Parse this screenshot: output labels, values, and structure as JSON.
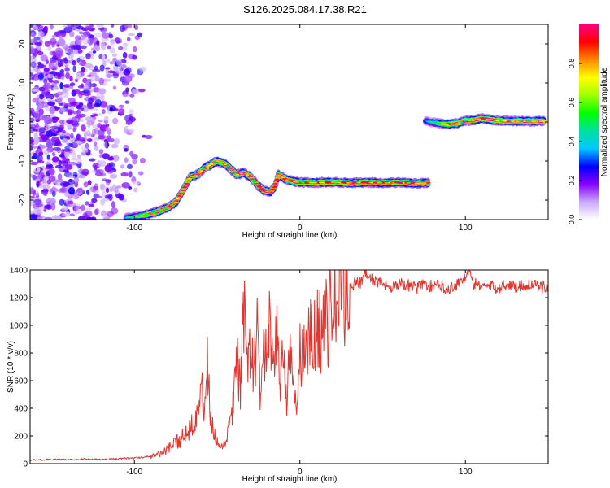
{
  "title": "S126.2025.084.17.38.R21",
  "chart_data": [
    {
      "type": "heatmap",
      "xlabel": "Height of straight line (km)",
      "ylabel": "Frequency (Hz)",
      "xlim": [
        -163,
        150
      ],
      "ylim": [
        -25,
        25
      ],
      "xticks": [
        -100,
        0,
        100
      ],
      "yticks": [
        -20,
        -10,
        0,
        10,
        20
      ],
      "colorbar": {
        "label": "Normalized spectral amplitude",
        "range": [
          0,
          1
        ],
        "ticks": [
          "0.0",
          "0.2",
          "0.4",
          "0.6",
          "0.8"
        ],
        "colors": [
          "#ffffff",
          "#c9a8ff",
          "#8800ff",
          "#0000ff",
          "#00c8ff",
          "#00e0a0",
          "#00ff00",
          "#a0ff00",
          "#ffff00",
          "#ff8800",
          "#ff0000",
          "#ff0080"
        ]
      },
      "noise_region": {
        "x": [
          -163,
          -90
        ],
        "y": [
          -25,
          25
        ]
      },
      "ridge": {
        "x": [
          -105,
          -95,
          -88,
          -80,
          -75,
          -70,
          -66,
          -62,
          -58,
          -54,
          -50,
          -46,
          -42,
          -38,
          -34,
          -30,
          -26,
          -22,
          -18,
          -15,
          -13,
          -11,
          -8,
          -4,
          0,
          10,
          20,
          30,
          40,
          50,
          60,
          70,
          78
        ],
        "y": [
          -24.5,
          -24,
          -23.2,
          -22,
          -20.5,
          -17,
          -14,
          -13.5,
          -12,
          -11,
          -10,
          -10.5,
          -12,
          -13.5,
          -13,
          -14,
          -16,
          -17.5,
          -18,
          -16.5,
          -13.5,
          -14,
          -14.8,
          -15.2,
          -15.5,
          -15.5,
          -15.4,
          -15.6,
          -15.5,
          -15.6,
          -15.5,
          -15.7,
          -15.6
        ]
      },
      "ridge2": {
        "x": [
          76,
          80,
          85,
          90,
          95,
          100,
          105,
          110,
          115,
          120,
          130,
          140,
          148
        ],
        "y": [
          0.2,
          -0.1,
          -0.4,
          -0.6,
          -0.4,
          0.3,
          0.4,
          0.9,
          0.6,
          0.3,
          0.2,
          0.2,
          0.2
        ]
      }
    },
    {
      "type": "line",
      "xlabel": "Height of straight line (km)",
      "ylabel": "SNR (10 * v/v)",
      "xlim": [
        -163,
        150
      ],
      "ylim": [
        0,
        1400
      ],
      "xticks": [
        -100,
        0,
        100
      ],
      "yticks": [
        0,
        200,
        400,
        600,
        800,
        1000,
        1200,
        1400
      ],
      "color": "#e8322c",
      "series": [
        {
          "x": [
            -163,
            -150,
            -140,
            -130,
            -120,
            -110,
            -100,
            -95,
            -90,
            -85,
            -80,
            -75,
            -70,
            -65,
            -62,
            -60,
            -58,
            -56,
            -54,
            -52,
            -50,
            -48,
            -46,
            -44,
            -42,
            -40,
            -38,
            -36,
            -34,
            -32,
            -30,
            -28,
            -26,
            -24,
            -22,
            -20,
            -18,
            -16,
            -14,
            -12,
            -10,
            -8,
            -6,
            -4,
            -2,
            0,
            2,
            4,
            6,
            8,
            10,
            12,
            14,
            16,
            18,
            20,
            22,
            24,
            26,
            28,
            30,
            32,
            34,
            36,
            38,
            40,
            45,
            50,
            55,
            60,
            65,
            70,
            75,
            80,
            85,
            90,
            95,
            100,
            102,
            105,
            110,
            115,
            120,
            125,
            130,
            135,
            140,
            145,
            150
          ],
          "y": [
            25,
            30,
            28,
            32,
            30,
            35,
            40,
            45,
            55,
            70,
            100,
            150,
            200,
            300,
            400,
            550,
            420,
            700,
            350,
            200,
            150,
            100,
            120,
            200,
            300,
            450,
            700,
            550,
            1150,
            600,
            900,
            650,
            950,
            500,
            850,
            700,
            1000,
            550,
            950,
            650,
            800,
            500,
            750,
            550,
            400,
            750,
            850,
            800,
            900,
            850,
            1000,
            950,
            1050,
            1000,
            1100,
            1150,
            1150,
            1200,
            1250,
            1200,
            1300,
            1280,
            1330,
            1300,
            1350,
            1370,
            1320,
            1300,
            1280,
            1300,
            1290,
            1270,
            1300,
            1280,
            1290,
            1260,
            1300,
            1350,
            1390,
            1300,
            1290,
            1280,
            1270,
            1300,
            1280,
            1290,
            1300,
            1270,
            1290
          ]
        }
      ]
    }
  ]
}
